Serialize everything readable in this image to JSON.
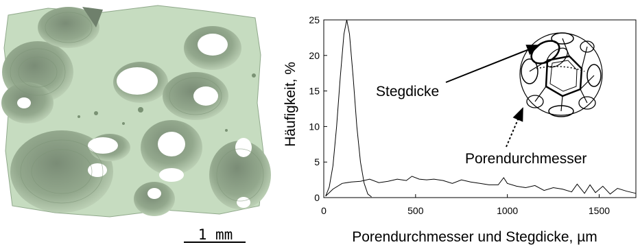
{
  "image": {
    "scale_bar_label": "1 mm"
  },
  "chart_data": {
    "type": "line",
    "title": "",
    "xlabel": "Porendurchmesser und Stegdicke, µm",
    "ylabel": "Häufigkeit, %",
    "xlim": [
      0,
      1700
    ],
    "ylim": [
      0,
      25
    ],
    "xticks": [
      0,
      500,
      1000,
      1500
    ],
    "yticks": [
      0,
      5,
      10,
      15,
      20,
      25
    ],
    "grid": false,
    "legend": "none",
    "annotations": [
      "Stegdicke",
      "Porendurchmesser"
    ],
    "series": [
      {
        "name": "Stegdicke",
        "x": [
          10,
          30,
          50,
          70,
          90,
          110,
          125,
          140,
          160,
          180,
          200,
          220,
          240,
          260
        ],
        "y": [
          0.2,
          1.5,
          4.5,
          10,
          17,
          23,
          25,
          23,
          17,
          10,
          5,
          2,
          0.5,
          0.1
        ]
      },
      {
        "name": "Porendurchmesser",
        "x": [
          10,
          50,
          100,
          150,
          200,
          250,
          300,
          350,
          400,
          450,
          480,
          520,
          560,
          600,
          650,
          700,
          750,
          800,
          850,
          900,
          950,
          980,
          1000,
          1050,
          1100,
          1150,
          1200,
          1250,
          1300,
          1350,
          1380,
          1420,
          1450,
          1480,
          1520,
          1560,
          1600,
          1650,
          1700
        ],
        "y": [
          0.2,
          1.2,
          2.0,
          2.2,
          2.3,
          2.6,
          2.1,
          2.3,
          2.6,
          2.4,
          3.0,
          2.6,
          2.5,
          2.6,
          2.4,
          2.0,
          2.5,
          2.2,
          2.0,
          1.8,
          1.8,
          2.8,
          2.0,
          1.6,
          1.4,
          1.7,
          1.0,
          1.4,
          1.2,
          0.8,
          1.9,
          0.6,
          1.8,
          0.7,
          1.6,
          0.5,
          1.3,
          0.9,
          0.6
        ]
      }
    ]
  }
}
